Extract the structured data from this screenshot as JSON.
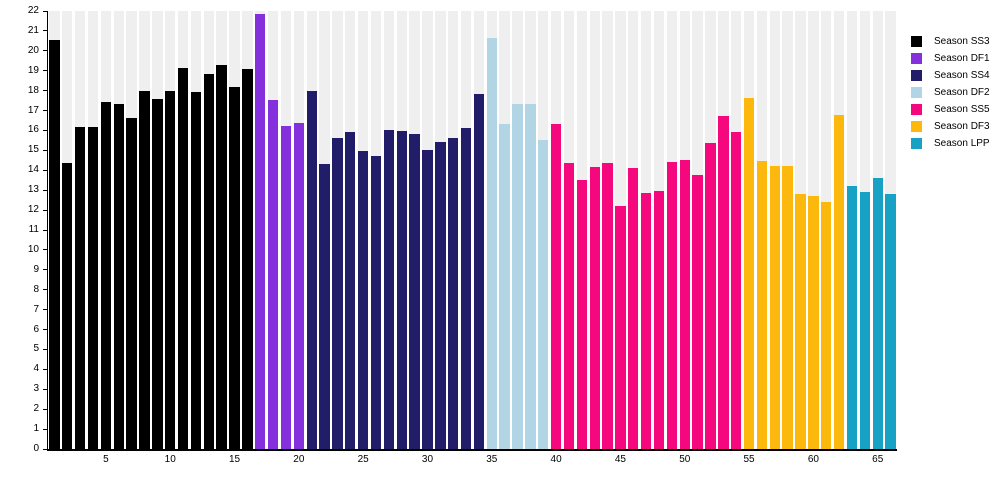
{
  "chart_data": {
    "type": "bar",
    "title": "",
    "xlabel": "",
    "ylabel": "",
    "x_range": [
      1,
      66
    ],
    "x_tick_labels": [
      5,
      10,
      15,
      20,
      25,
      30,
      35,
      40,
      45,
      50,
      55,
      60,
      65
    ],
    "y_axis": {
      "min": 0,
      "max": 22,
      "tick_step": 1
    },
    "grid": "background-columns",
    "background_column_color": "#efefef",
    "legend_position": "right",
    "series": [
      {
        "name": "Season SS3",
        "color": "#000000",
        "values": [
          20.55,
          14.35,
          16.15,
          16.15,
          17.45,
          17.35,
          16.65,
          18.0,
          17.6,
          18.0,
          19.15,
          17.95,
          18.85,
          19.3,
          18.2,
          19.1
        ]
      },
      {
        "name": "Season DF1",
        "color": "#8430dd",
        "values": [
          21.85,
          17.55,
          16.2,
          16.4
        ]
      },
      {
        "name": "Season SS4",
        "color": "#221d69",
        "values": [
          18.0,
          14.3,
          15.6,
          15.9,
          14.95,
          14.7,
          16.0,
          15.95,
          15.8,
          15.0,
          15.4,
          15.6,
          16.1,
          17.85
        ]
      },
      {
        "name": "Season DF2",
        "color": "#b2d5e5",
        "values": [
          20.65,
          16.3,
          17.35,
          17.35,
          15.5
        ]
      },
      {
        "name": "Season SS5",
        "color": "#f5077e",
        "values": [
          16.3,
          14.35,
          13.5,
          14.15,
          14.35,
          12.2,
          14.1,
          12.85,
          12.95,
          14.4,
          14.5,
          13.75,
          15.35,
          16.75,
          15.9
        ]
      },
      {
        "name": "Season DF3",
        "color": "#fcb80d",
        "values": [
          17.65,
          14.45,
          14.2,
          14.2,
          12.8,
          12.7,
          12.4,
          16.8
        ]
      },
      {
        "name": "Season LPP",
        "color": "#17a1c5",
        "values": [
          13.2,
          12.9,
          13.6,
          12.8
        ]
      }
    ]
  }
}
